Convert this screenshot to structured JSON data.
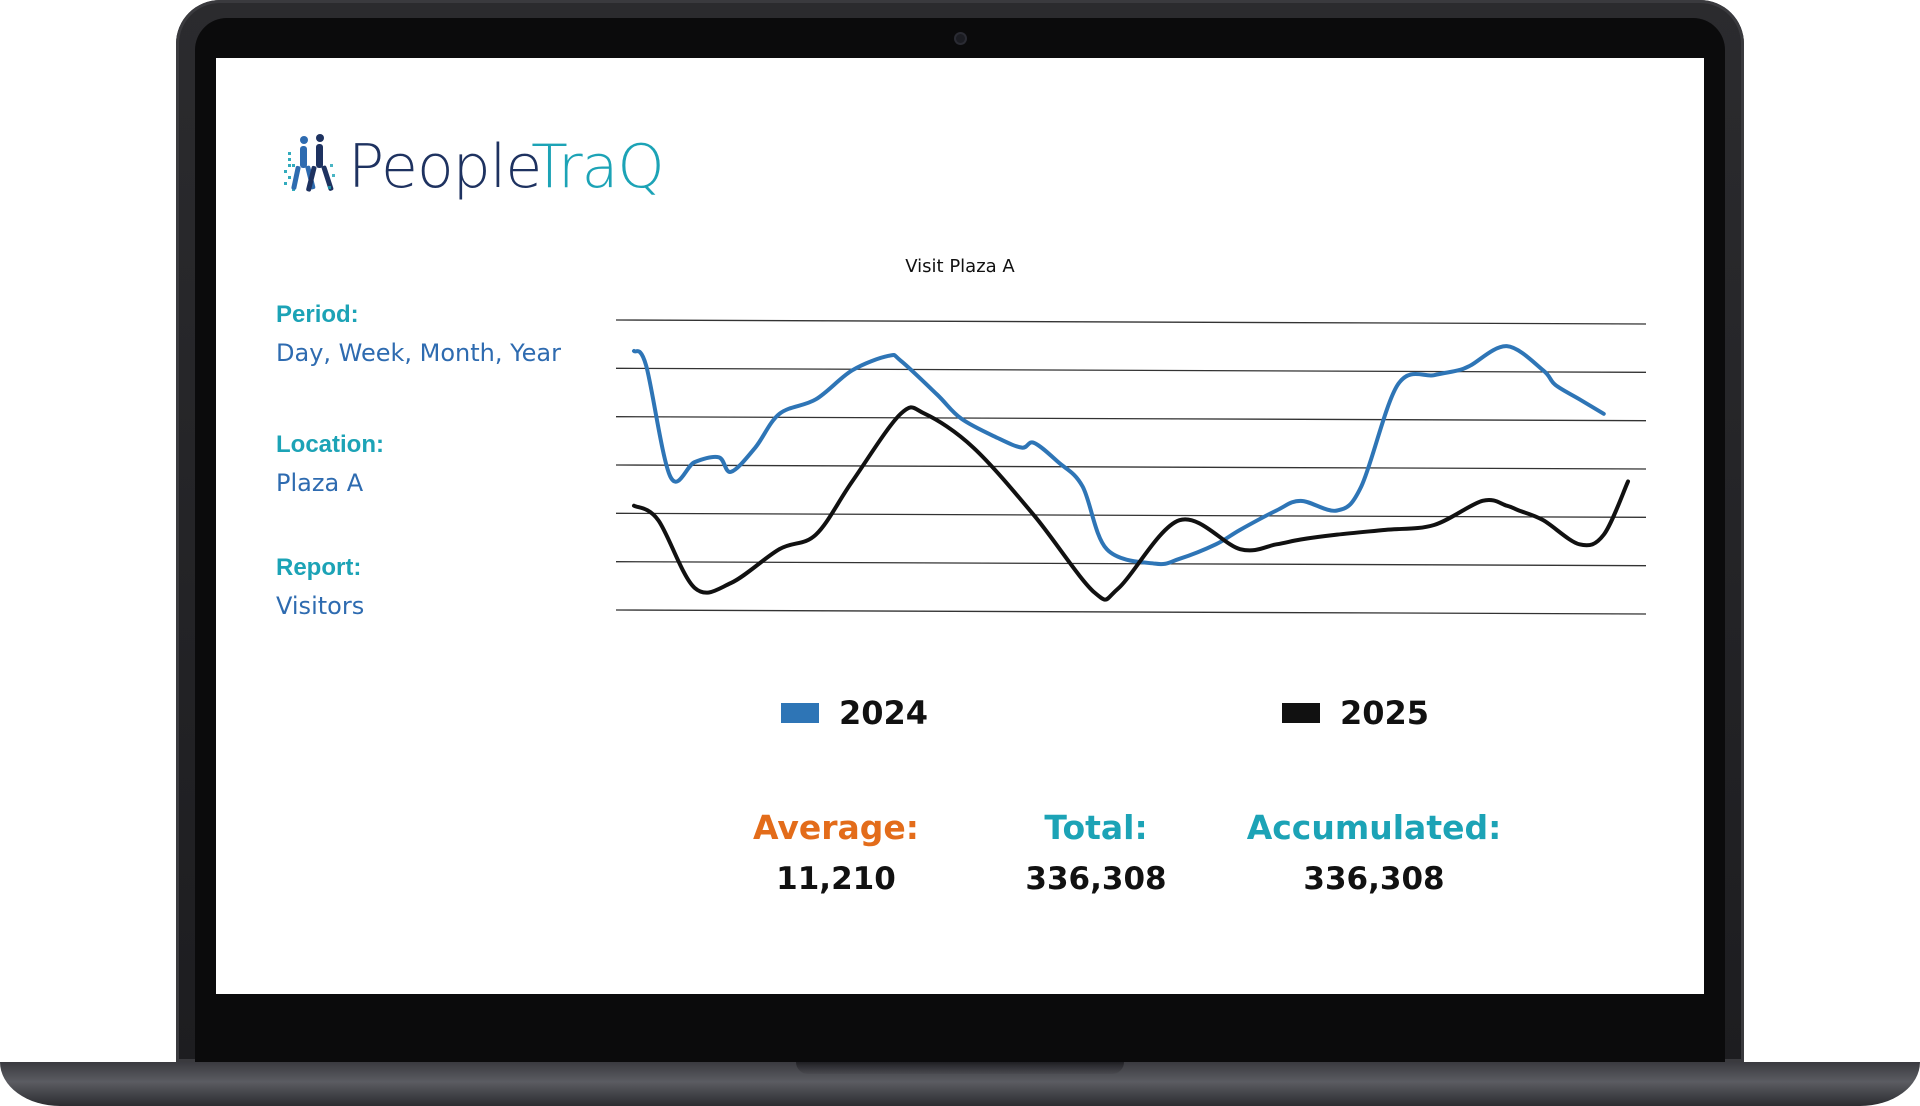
{
  "app": {
    "logo_part1": "People",
    "logo_part2": "TraQ"
  },
  "filters": {
    "period_label": "Period:",
    "period_value": "Day, Week, Month, Year",
    "location_label": "Location:",
    "location_value": "Plaza A",
    "report_label": "Report:",
    "report_value": "Visitors"
  },
  "chart_data": {
    "type": "line",
    "title": "Visit Plaza A",
    "xlabel": "",
    "ylabel": "",
    "grid": true,
    "legend_placement": "bottom",
    "series": [
      {
        "name": "2024",
        "color": "#2e75b6",
        "x": [
          0,
          1,
          3,
          5,
          7,
          8,
          10,
          12,
          15,
          18,
          21,
          22,
          25,
          27,
          30,
          32,
          33,
          35,
          37,
          39,
          43,
          45,
          48,
          50,
          53,
          55,
          58,
          60,
          63,
          66,
          68,
          69,
          72,
          75,
          76,
          78,
          80
        ],
        "values": [
          5.4,
          5.1,
          2.8,
          3.1,
          3.2,
          2.9,
          3.4,
          4.1,
          4.4,
          5.0,
          5.3,
          5.2,
          4.5,
          4.0,
          3.6,
          3.4,
          3.5,
          3.1,
          2.6,
          1.3,
          1.0,
          1.1,
          1.4,
          1.7,
          2.1,
          2.3,
          2.1,
          2.6,
          4.7,
          4.9,
          5.0,
          5.1,
          5.5,
          5.0,
          4.7,
          4.4,
          4.1
        ]
      },
      {
        "name": "2025",
        "color": "#111111",
        "x": [
          0,
          2,
          5,
          8,
          12,
          15,
          18,
          22,
          24,
          28,
          33,
          38,
          40,
          45,
          50,
          53,
          55,
          58,
          62,
          66,
          70,
          72,
          73,
          75,
          78,
          80,
          82
        ],
        "values": [
          2.2,
          1.9,
          0.5,
          0.6,
          1.3,
          1.6,
          2.7,
          4.1,
          4.1,
          3.4,
          2.0,
          0.4,
          0.5,
          1.9,
          1.3,
          1.4,
          1.5,
          1.6,
          1.7,
          1.8,
          2.3,
          2.2,
          2.1,
          1.9,
          1.4,
          1.6,
          2.7
        ]
      }
    ],
    "ylim": [
      0,
      6
    ],
    "grid_lines": 7
  },
  "legend": {
    "item1": "2024",
    "item2": "2025"
  },
  "stats": {
    "average_label": "Average:",
    "average_value": "11,210",
    "total_label": "Total:",
    "total_value": "336,308",
    "accumulated_label": "Accumulated:",
    "accumulated_value": "336,308"
  },
  "colors": {
    "teal": "#1ca3b6",
    "navy": "#1e3260",
    "blue_text": "#2e6bb0",
    "orange": "#e36c1a",
    "series_2024": "#2e75b6",
    "series_2025": "#111111"
  }
}
